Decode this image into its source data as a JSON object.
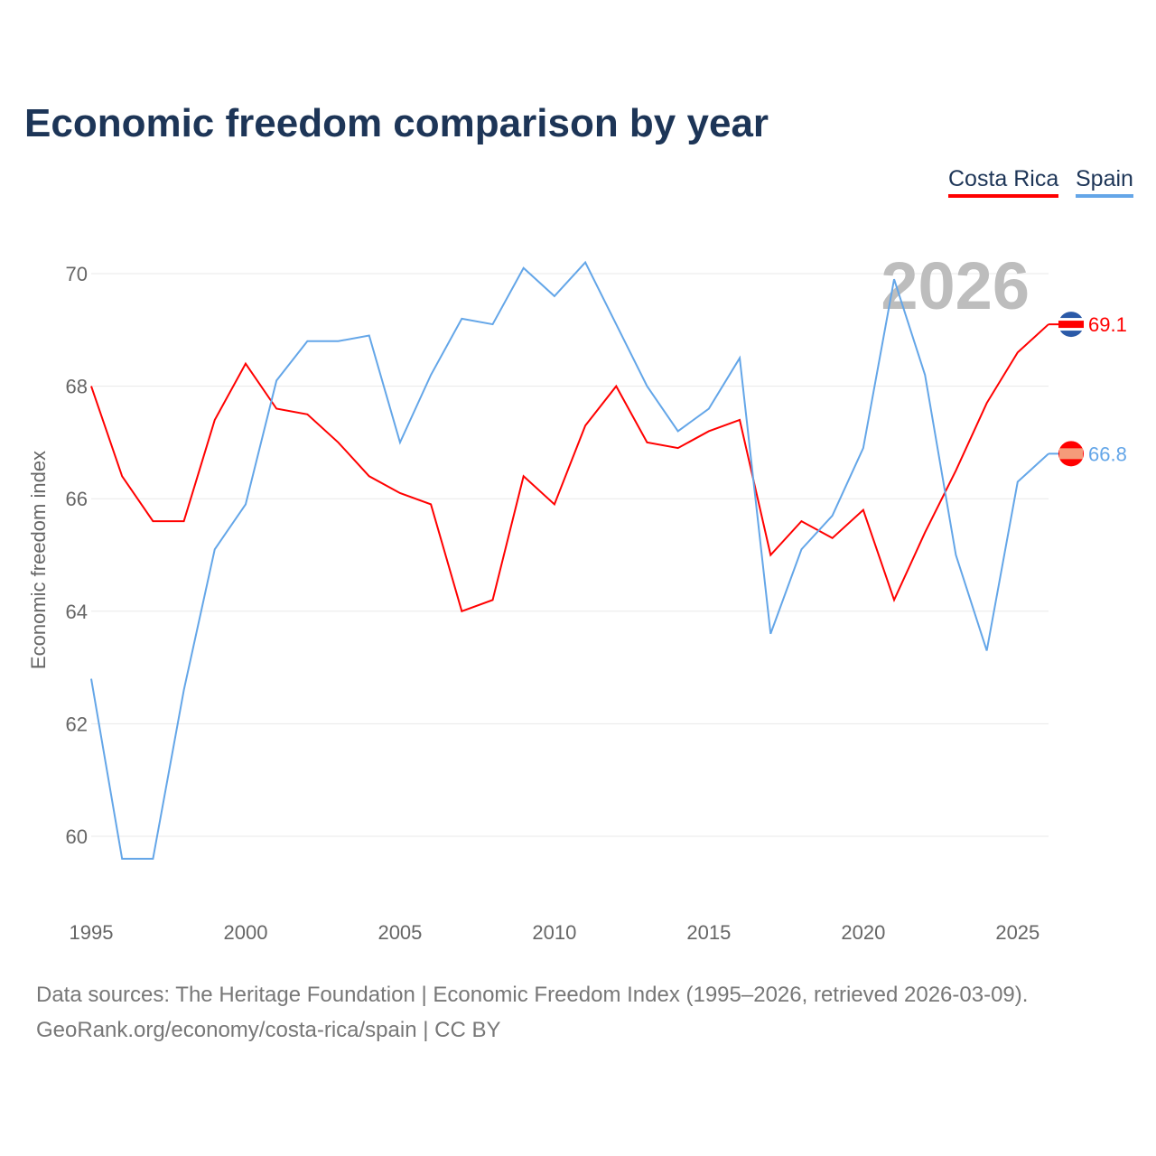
{
  "title": "Economic freedom comparison by year",
  "chart_data": {
    "type": "line",
    "title": "Economic freedom comparison by year",
    "xlabel": "",
    "ylabel": "Economic freedom index",
    "x": [
      1995,
      1996,
      1997,
      1998,
      1999,
      2000,
      2001,
      2002,
      2003,
      2004,
      2005,
      2006,
      2007,
      2008,
      2009,
      2010,
      2011,
      2012,
      2013,
      2014,
      2015,
      2016,
      2017,
      2018,
      2019,
      2020,
      2021,
      2022,
      2023,
      2024,
      2025,
      2026
    ],
    "xlim": [
      1995,
      2026
    ],
    "ylim": [
      59,
      71
    ],
    "xticks": [
      "1995",
      "2000",
      "2005",
      "2010",
      "2015",
      "2020",
      "2025"
    ],
    "yticks": [
      "60",
      "62",
      "64",
      "66",
      "68",
      "70"
    ],
    "grid": true,
    "legend_placement": "top-right",
    "year_watermark": "2026",
    "series": [
      {
        "name": "Costa Rica",
        "color": "#ff0000",
        "end_label": "69.1",
        "values": [
          68.0,
          66.4,
          65.6,
          65.6,
          67.4,
          68.4,
          67.6,
          67.5,
          67.0,
          66.4,
          66.1,
          65.9,
          64.0,
          64.2,
          66.4,
          65.9,
          67.3,
          68.0,
          67.0,
          66.9,
          67.2,
          67.4,
          65.0,
          65.6,
          65.3,
          65.8,
          64.2,
          65.4,
          66.5,
          67.7,
          68.6,
          69.1
        ]
      },
      {
        "name": "Spain",
        "color": "#64a6e8",
        "end_label": "66.8",
        "values": [
          62.8,
          59.6,
          59.6,
          62.6,
          65.1,
          65.9,
          68.1,
          68.8,
          68.8,
          68.9,
          67.0,
          68.2,
          69.2,
          69.1,
          70.1,
          69.6,
          70.2,
          69.1,
          68.0,
          67.2,
          67.6,
          68.5,
          63.6,
          65.1,
          65.7,
          66.9,
          69.9,
          68.2,
          65.0,
          63.3,
          66.3,
          66.8
        ]
      }
    ]
  },
  "sources": {
    "line1": "Data sources: The Heritage Foundation | Economic Freedom Index (1995–2026, retrieved 2026-03-09).",
    "line2": "GeoRank.org/economy/costa-rica/spain | CC BY"
  }
}
